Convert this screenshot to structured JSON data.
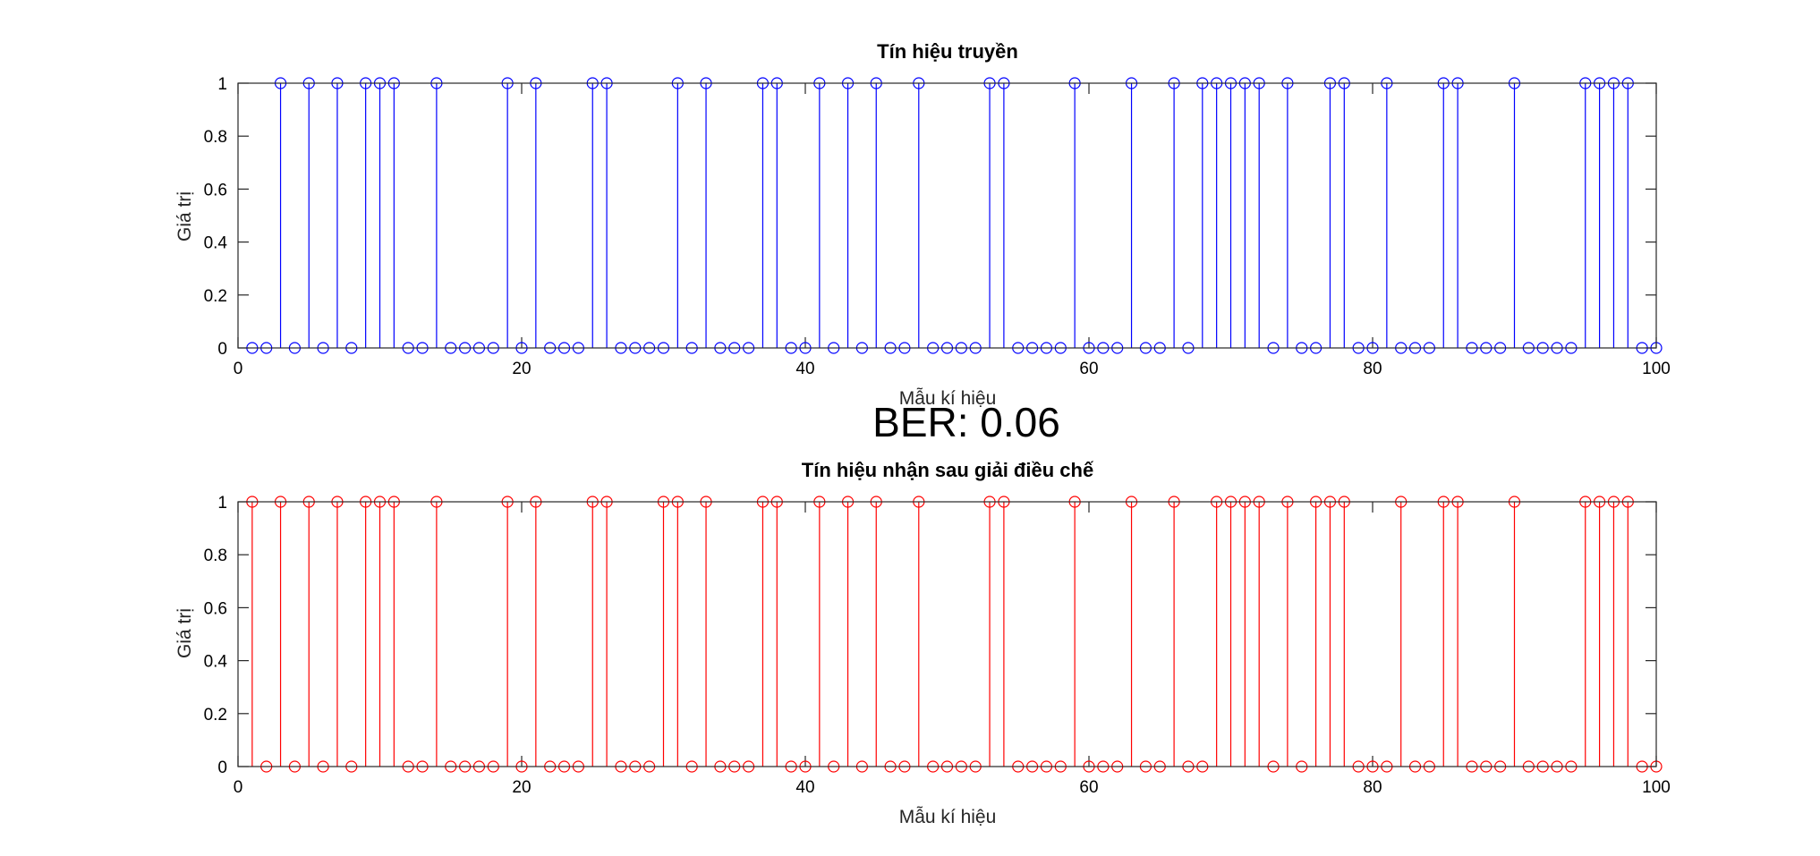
{
  "chart_data": [
    {
      "type": "stem",
      "title": "Tín hiệu truyền",
      "xlabel": "Mẫu kí hiệu",
      "ylabel": "Giá trị",
      "xlim": [
        0,
        100
      ],
      "ylim": [
        0,
        1
      ],
      "xticks": [
        "0",
        "20",
        "40",
        "60",
        "80",
        "100"
      ],
      "yticks": [
        "0",
        "0.2",
        "0.4",
        "0.6",
        "0.8",
        "1"
      ],
      "color": "#0000ff",
      "marker": "circle",
      "x": [
        1,
        2,
        3,
        4,
        5,
        6,
        7,
        8,
        9,
        10,
        11,
        12,
        13,
        14,
        15,
        16,
        17,
        18,
        19,
        20,
        21,
        22,
        23,
        24,
        25,
        26,
        27,
        28,
        29,
        30,
        31,
        32,
        33,
        34,
        35,
        36,
        37,
        38,
        39,
        40,
        41,
        42,
        43,
        44,
        45,
        46,
        47,
        48,
        49,
        50,
        51,
        52,
        53,
        54,
        55,
        56,
        57,
        58,
        59,
        60,
        61,
        62,
        63,
        64,
        65,
        66,
        67,
        68,
        69,
        70,
        71,
        72,
        73,
        74,
        75,
        76,
        77,
        78,
        79,
        80,
        81,
        82,
        83,
        84,
        85,
        86,
        87,
        88,
        89,
        90,
        91,
        92,
        93,
        94,
        95,
        96,
        97,
        98,
        99,
        100
      ],
      "values": [
        0,
        0,
        1,
        0,
        1,
        0,
        1,
        0,
        1,
        1,
        1,
        0,
        0,
        1,
        0,
        0,
        0,
        0,
        1,
        0,
        1,
        0,
        0,
        0,
        1,
        1,
        0,
        0,
        0,
        0,
        1,
        0,
        1,
        0,
        0,
        0,
        1,
        1,
        0,
        0,
        1,
        0,
        1,
        0,
        1,
        0,
        0,
        1,
        0,
        0,
        0,
        0,
        1,
        1,
        0,
        0,
        0,
        0,
        1,
        0,
        0,
        0,
        1,
        0,
        0,
        1,
        0,
        1,
        1,
        1,
        1,
        1,
        0,
        1,
        0,
        0,
        1,
        1,
        0,
        0,
        1,
        0,
        0,
        0,
        1,
        1,
        0,
        0,
        0,
        1,
        0,
        0,
        0,
        0,
        1,
        1,
        1,
        1,
        0,
        0
      ]
    },
    {
      "type": "stem",
      "title": "Tín hiệu nhận sau giải điều chế",
      "xlabel": "Mẫu kí hiệu",
      "ylabel": "Giá trị",
      "xlim": [
        0,
        100
      ],
      "ylim": [
        0,
        1
      ],
      "xticks": [
        "0",
        "20",
        "40",
        "60",
        "80",
        "100"
      ],
      "yticks": [
        "0",
        "0.2",
        "0.4",
        "0.6",
        "0.8",
        "1"
      ],
      "color": "#ff0000",
      "marker": "circle",
      "x": [
        1,
        2,
        3,
        4,
        5,
        6,
        7,
        8,
        9,
        10,
        11,
        12,
        13,
        14,
        15,
        16,
        17,
        18,
        19,
        20,
        21,
        22,
        23,
        24,
        25,
        26,
        27,
        28,
        29,
        30,
        31,
        32,
        33,
        34,
        35,
        36,
        37,
        38,
        39,
        40,
        41,
        42,
        43,
        44,
        45,
        46,
        47,
        48,
        49,
        50,
        51,
        52,
        53,
        54,
        55,
        56,
        57,
        58,
        59,
        60,
        61,
        62,
        63,
        64,
        65,
        66,
        67,
        68,
        69,
        70,
        71,
        72,
        73,
        74,
        75,
        76,
        77,
        78,
        79,
        80,
        81,
        82,
        83,
        84,
        85,
        86,
        87,
        88,
        89,
        90,
        91,
        92,
        93,
        94,
        95,
        96,
        97,
        98,
        99,
        100
      ],
      "values": [
        1,
        0,
        1,
        0,
        1,
        0,
        1,
        0,
        1,
        1,
        1,
        0,
        0,
        1,
        0,
        0,
        0,
        0,
        1,
        0,
        1,
        0,
        0,
        0,
        1,
        1,
        0,
        0,
        0,
        1,
        1,
        0,
        1,
        0,
        0,
        0,
        1,
        1,
        0,
        0,
        1,
        0,
        1,
        0,
        1,
        0,
        0,
        1,
        0,
        0,
        0,
        0,
        1,
        1,
        0,
        0,
        0,
        0,
        1,
        0,
        0,
        0,
        1,
        0,
        0,
        1,
        0,
        0,
        1,
        1,
        1,
        1,
        0,
        1,
        0,
        1,
        1,
        1,
        0,
        0,
        0,
        1,
        0,
        0,
        1,
        1,
        0,
        0,
        0,
        1,
        0,
        0,
        0,
        0,
        1,
        1,
        1,
        1,
        0,
        0
      ]
    }
  ],
  "annotation": {
    "ber_text": "BER: 0.06"
  }
}
